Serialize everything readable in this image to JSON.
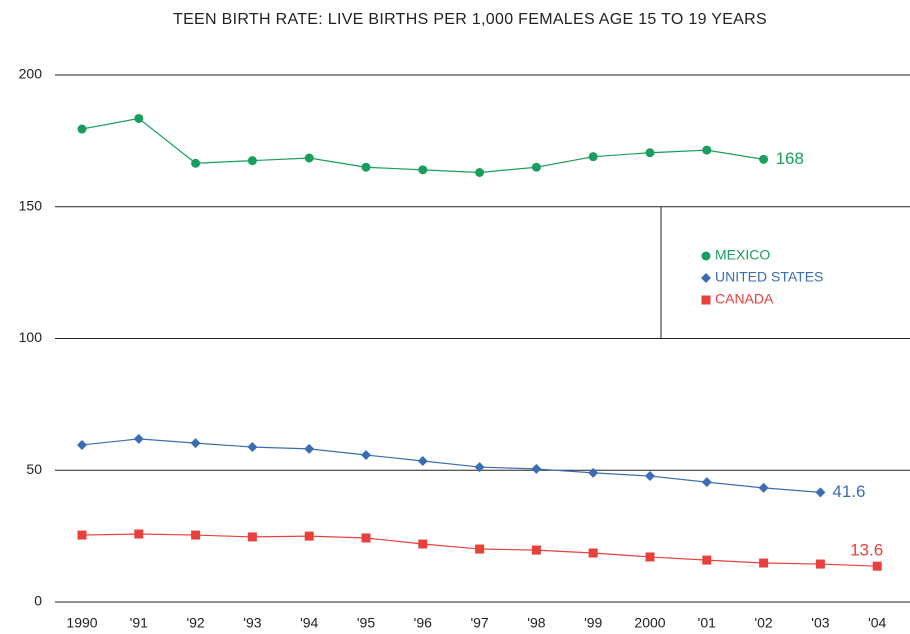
{
  "chart_data": {
    "type": "line",
    "title": "TEEN BIRTH RATE: LIVE BIRTHS PER 1,000 FEMALES AGE 15 TO 19 YEARS",
    "categories": [
      "1990",
      "'91",
      "'92",
      "'93",
      "'94",
      "'95",
      "'96",
      "'97",
      "'98",
      "'99",
      "2000",
      "'01",
      "'02",
      "'03",
      "'04"
    ],
    "series": [
      {
        "name": "MEXICO",
        "color": "#1a9e5f",
        "marker": "circle",
        "values": [
          179.5,
          183.5,
          166.5,
          167.5,
          168.5,
          165,
          164,
          163,
          165,
          169,
          170.5,
          171.5,
          168,
          null,
          null
        ]
      },
      {
        "name": "UNITED STATES",
        "color": "#3b6db3",
        "marker": "diamond",
        "values": [
          59.6,
          61.9,
          60.3,
          58.8,
          58.1,
          55.8,
          53.5,
          51.2,
          50.5,
          49,
          47.8,
          45.5,
          43.3,
          41.6,
          null
        ]
      },
      {
        "name": "CANADA",
        "color": "#e8413c",
        "marker": "square",
        "values": [
          25.4,
          25.8,
          25.4,
          24.7,
          25,
          24.3,
          22,
          20.1,
          19.7,
          18.6,
          17.1,
          15.9,
          14.8,
          14.4,
          13.6
        ]
      }
    ],
    "ylim": [
      0,
      200
    ],
    "yticks": [
      0,
      50,
      100,
      150,
      200
    ],
    "grid": true
  }
}
